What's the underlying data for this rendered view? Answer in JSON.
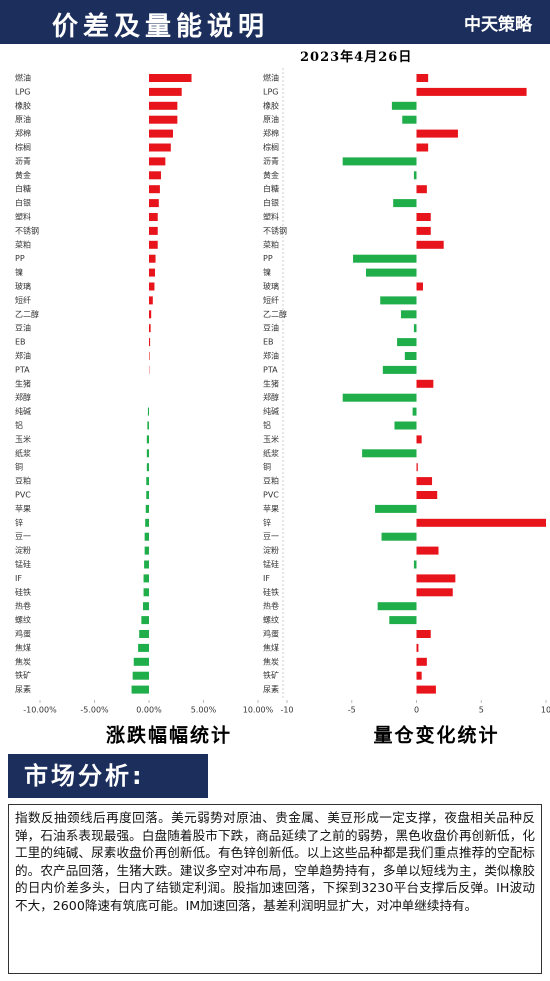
{
  "header": {
    "title": "价差及量能说明",
    "logo": "中天策略",
    "date": "2023年4月26日"
  },
  "chart_data": [
    {
      "type": "bar",
      "orientation": "horizontal",
      "title": "涨跌幅幅统计",
      "categories": [
        "燃油",
        "LPG",
        "橡胶",
        "原油",
        "郑棉",
        "棕榈",
        "沥青",
        "黄金",
        "白糖",
        "白银",
        "塑料",
        "不锈钢",
        "菜粕",
        "PP",
        "镍",
        "玻璃",
        "短纤",
        "乙二醇",
        "豆油",
        "EB",
        "郑油",
        "PTA",
        "生猪",
        "郑醇",
        "纯碱",
        "铝",
        "玉米",
        "纸浆",
        "铜",
        "豆粕",
        "PVC",
        "苹果",
        "锌",
        "豆一",
        "淀粉",
        "锰硅",
        "IF",
        "硅铁",
        "热卷",
        "螺纹",
        "鸡蛋",
        "焦煤",
        "焦炭",
        "铁矿",
        "尿素"
      ],
      "values": [
        3.9,
        3.0,
        2.6,
        2.6,
        2.2,
        2.0,
        1.5,
        1.1,
        1.0,
        0.9,
        0.8,
        0.8,
        0.8,
        0.6,
        0.55,
        0.5,
        0.35,
        0.2,
        0.15,
        0.1,
        0.05,
        0.03,
        0,
        0,
        -0.1,
        -0.15,
        -0.2,
        -0.2,
        -0.2,
        -0.25,
        -0.25,
        -0.3,
        -0.35,
        -0.4,
        -0.4,
        -0.45,
        -0.5,
        -0.5,
        -0.55,
        -0.7,
        -0.9,
        -1.0,
        -1.4,
        -1.5,
        -1.6
      ],
      "xlim": [
        -10,
        10
      ],
      "xticks": [
        {
          "value": -10,
          "label": "-10.00%"
        },
        {
          "value": -5,
          "label": "-5.00%"
        },
        {
          "value": 0,
          "label": "0.00%"
        },
        {
          "value": 5,
          "label": "5.00%"
        },
        {
          "value": 10,
          "label": "10.00%"
        }
      ],
      "positive_color": "#e8141c",
      "negative_color": "#1fae4a"
    },
    {
      "type": "bar",
      "orientation": "horizontal",
      "title": "量仓变化统计",
      "categories": [
        "燃油",
        "LPG",
        "橡胶",
        "原油",
        "郑棉",
        "棕榈",
        "沥青",
        "黄金",
        "白糖",
        "白银",
        "塑料",
        "不锈钢",
        "菜粕",
        "PP",
        "镍",
        "玻璃",
        "短纤",
        "乙二醇",
        "豆油",
        "EB",
        "郑油",
        "PTA",
        "生猪",
        "郑醇",
        "纯碱",
        "铝",
        "玉米",
        "纸浆",
        "铜",
        "豆粕",
        "PVC",
        "苹果",
        "锌",
        "豆一",
        "淀粉",
        "锰硅",
        "IF",
        "硅铁",
        "热卷",
        "螺纹",
        "鸡蛋",
        "焦煤",
        "焦炭",
        "铁矿",
        "尿素"
      ],
      "values": [
        0.9,
        8.5,
        -1.9,
        -1.1,
        3.2,
        0.9,
        -5.7,
        -0.2,
        0.8,
        -1.8,
        1.1,
        1.1,
        2.1,
        -4.9,
        -3.9,
        0.5,
        -2.8,
        -1.2,
        -0.2,
        -1.5,
        -0.9,
        -2.6,
        1.3,
        -5.7,
        -0.3,
        -1.7,
        0.4,
        -4.2,
        0.1,
        1.2,
        1.6,
        -3.2,
        10,
        -2.7,
        1.7,
        -0.2,
        3.0,
        2.8,
        -3.0,
        -2.1,
        1.1,
        0.15,
        0.8,
        0.4,
        1.5
      ],
      "xlim": [
        -10,
        10
      ],
      "xticks": [
        -10,
        -5,
        0,
        5,
        10
      ],
      "positive_color": "#e8141c",
      "negative_color": "#1fae4a"
    }
  ],
  "analysis": {
    "heading": "市场分析:",
    "text": "指数反抽颈线后再度回落。美元弱势对原油、贵金属、美豆形成一定支撑，夜盘相关品种反弹，石油系表现最强。白盘随着股市下跌，商品延续了之前的弱势，黑色收盘价再创新低，化工里的纯碱、尿素收盘价再创新低。有色锌创新低。以上这些品种都是我们重点推荐的空配标的。农产品回落，生猪大跌。建议多空对冲布局，空单趋势持有，多单以短线为主，类似橡胶的日内价差多头，日内了结锁定利润。股指加速回落，下探到3230平台支撑后反弹。IH波动不大，2600降速有筑底可能。IM加速回落，基差利润明显扩大，对冲单继续持有。"
  }
}
